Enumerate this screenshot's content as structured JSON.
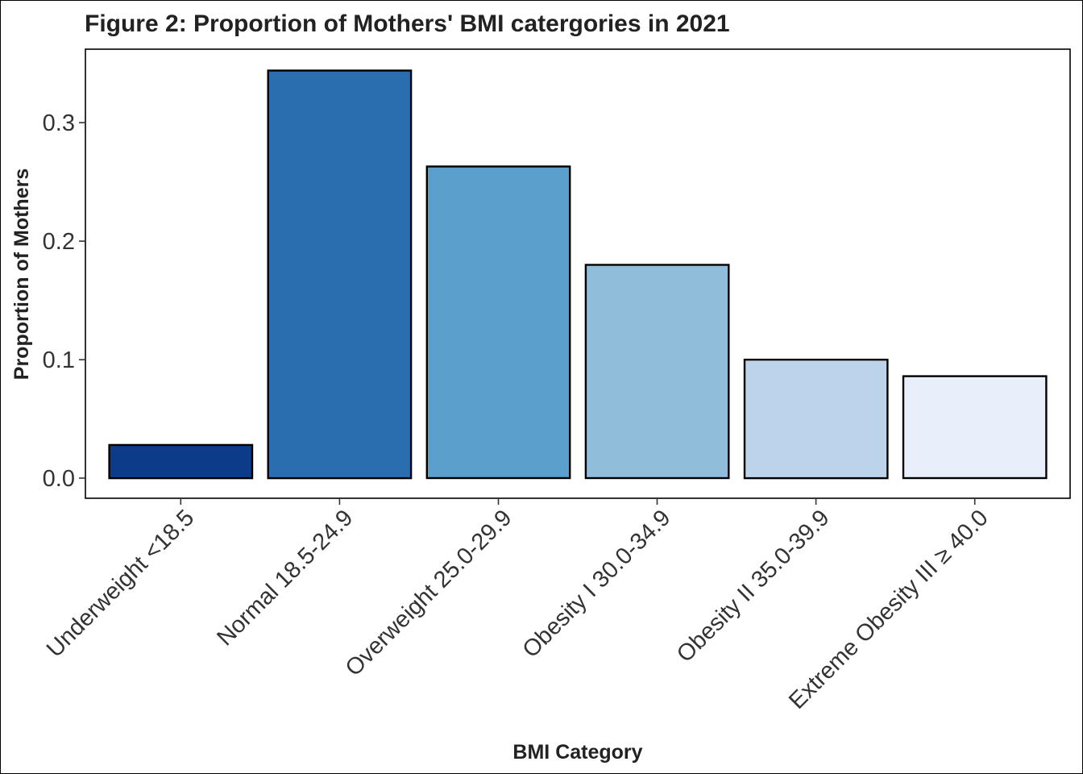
{
  "chart_data": {
    "type": "bar",
    "title": "Figure 2: Proportion of Mothers' BMI catergories in 2021",
    "xlabel": "BMI Category",
    "ylabel": "Proportion of Mothers",
    "categories": [
      "Underweight <18.5",
      "Normal 18.5-24.9",
      "Overweight 25.0-29.9",
      "Obesity I 30.0-34.9",
      "Obesity II 35.0-39.9",
      "Extreme Obesity III ≥ 40.0"
    ],
    "values": [
      0.028,
      0.344,
      0.263,
      0.18,
      0.1,
      0.086
    ],
    "colors": [
      "#0c3b8a",
      "#2b6eb0",
      "#5b9fcc",
      "#8fbdda",
      "#bcd3eb",
      "#e8effb"
    ],
    "ylim": [
      -0.017,
      0.362
    ],
    "yticks": [
      0.0,
      0.1,
      0.2,
      0.3
    ],
    "ytick_labels": [
      "0.0",
      "0.1",
      "0.2",
      "0.3"
    ],
    "grid": false,
    "legend": "none"
  }
}
